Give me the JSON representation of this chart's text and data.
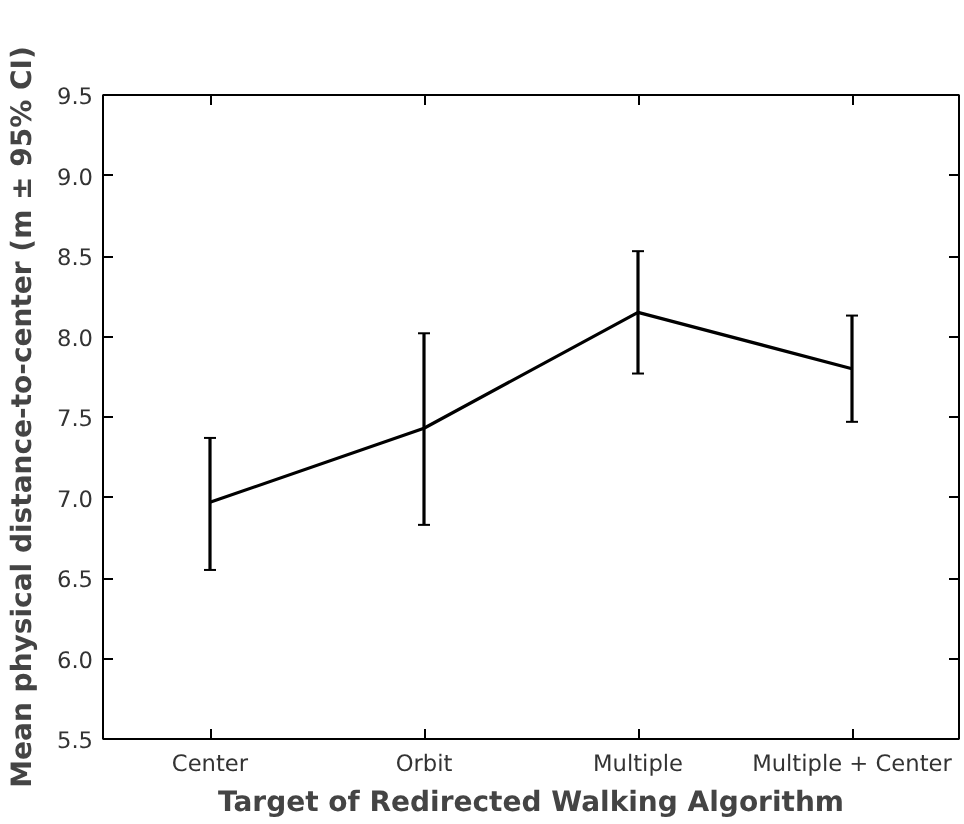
{
  "chart_data": {
    "type": "line",
    "xlabel": "Target of Redirected Walking Algorithm",
    "ylabel": "Mean physical distance-to-center (m ± 95% CI)",
    "categories": [
      "Center",
      "Orbit",
      "Multiple",
      "Multiple + Center"
    ],
    "series": [
      {
        "color": "#000000",
        "values": [
          6.97,
          7.43,
          8.15,
          7.8
        ],
        "errors": [
          [
            6.55,
            7.37
          ],
          [
            6.83,
            8.02
          ],
          [
            7.77,
            8.53
          ],
          [
            7.47,
            8.13
          ]
        ]
      }
    ],
    "ylim": [
      5.5,
      9.5
    ],
    "yticks": [
      {
        "value": 5.5,
        "label": "5.5"
      },
      {
        "value": 6.0,
        "label": "6.0"
      },
      {
        "value": 6.5,
        "label": "6.5"
      },
      {
        "value": 7.0,
        "label": "7.0"
      },
      {
        "value": 7.5,
        "label": "7.5"
      },
      {
        "value": 8.0,
        "label": "8.0"
      },
      {
        "value": 8.5,
        "label": "8.5"
      },
      {
        "value": 9.0,
        "label": "9.0"
      },
      {
        "value": 9.5,
        "label": "9.5"
      }
    ],
    "grid": false,
    "marker": "none",
    "line_style": "solid"
  }
}
